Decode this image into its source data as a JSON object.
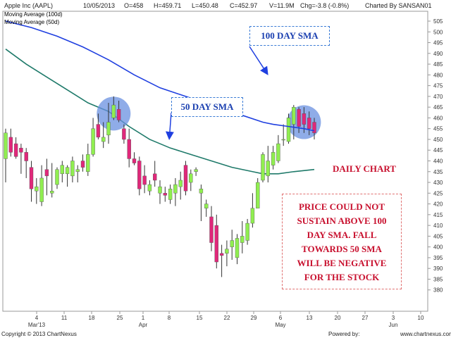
{
  "header": {
    "name": "Apple Inc (AAPL)",
    "date": "10/05/2013",
    "open": "O=458",
    "high": "H=459.71",
    "low": "L=450.48",
    "close": "C=452.97",
    "volume": "V=11.9M",
    "change": "Chg=-3.8 (-0.8%)",
    "charted_by": "Charted By SANSAN01"
  },
  "legend": [
    {
      "label": "Moving Average (100d)",
      "color": "#1f3fe0"
    },
    {
      "label": "Moving Average (50d)",
      "color": "#1f7a6a"
    }
  ],
  "footer": {
    "copyright": "Copyright © 2013 ChartNexus",
    "powered": "Powered by:",
    "url": "www.chartnexus.com"
  },
  "annotations": {
    "sma100_box": "100 DAY SMA",
    "sma50_box": "50 DAY SMA",
    "daily_chart": "DAILY CHART",
    "note_lines": [
      "PRICE COULD NOT",
      "SUSTAIN ABOVE 100",
      "DAY SMA. FALL",
      "TOWARDS 50 SMA",
      "WILL BE NEGATIVE",
      "FOR THE STOCK"
    ]
  },
  "colors": {
    "up_candle": "#90ee50",
    "down_candle": "#e0287a",
    "sma100": "#1f3fe0",
    "sma50": "#1f7a6a",
    "highlight": "#6a90e0",
    "note_text": "#c8102e"
  },
  "chart_data": {
    "type": "candlestick",
    "title": "Apple Inc (AAPL)",
    "ylim": [
      375,
      505
    ],
    "y_ticks": [
      380,
      385,
      390,
      395,
      400,
      405,
      410,
      415,
      420,
      425,
      430,
      435,
      440,
      445,
      450,
      455,
      460,
      465,
      470,
      475,
      480,
      485,
      490,
      495,
      500,
      505
    ],
    "x_tick_labels": [
      "4",
      "11",
      "18",
      "25",
      "1",
      "8",
      "15",
      "22",
      "29",
      "6",
      "13",
      "20",
      "27",
      "3",
      "10"
    ],
    "x_month_labels": [
      {
        "label": "Mar'13",
        "under": "4"
      },
      {
        "label": "Apr",
        "under": "1"
      },
      {
        "label": "May",
        "under": "6"
      },
      {
        "label": "Jun",
        "under": "3"
      }
    ],
    "candles": [
      {
        "o": 441,
        "h": 455,
        "l": 430,
        "c": 453
      },
      {
        "o": 451,
        "h": 455,
        "l": 442,
        "c": 444
      },
      {
        "o": 448,
        "h": 451,
        "l": 441,
        "c": 442
      },
      {
        "o": 446,
        "h": 448,
        "l": 434,
        "c": 444
      },
      {
        "o": 444,
        "h": 446,
        "l": 432,
        "c": 440
      },
      {
        "o": 437,
        "h": 440,
        "l": 421,
        "c": 427
      },
      {
        "o": 426,
        "h": 432,
        "l": 420,
        "c": 428
      },
      {
        "o": 421,
        "h": 438,
        "l": 419,
        "c": 432
      },
      {
        "o": 436,
        "h": 441,
        "l": 424,
        "c": 433
      },
      {
        "o": 425,
        "h": 439,
        "l": 423,
        "c": 426
      },
      {
        "o": 429,
        "h": 437,
        "l": 427,
        "c": 436
      },
      {
        "o": 434,
        "h": 440,
        "l": 430,
        "c": 438
      },
      {
        "o": 434,
        "h": 438,
        "l": 428,
        "c": 437
      },
      {
        "o": 433,
        "h": 442,
        "l": 430,
        "c": 440
      },
      {
        "o": 435,
        "h": 438,
        "l": 430,
        "c": 436
      },
      {
        "o": 440,
        "h": 443,
        "l": 435,
        "c": 437
      },
      {
        "o": 435,
        "h": 448,
        "l": 433,
        "c": 443
      },
      {
        "o": 443,
        "h": 460,
        "l": 442,
        "c": 455
      },
      {
        "o": 457,
        "h": 462,
        "l": 450,
        "c": 451
      },
      {
        "o": 449,
        "h": 458,
        "l": 446,
        "c": 451
      },
      {
        "o": 452,
        "h": 467,
        "l": 448,
        "c": 458
      },
      {
        "o": 460,
        "h": 470,
        "l": 459,
        "c": 466
      },
      {
        "o": 464,
        "h": 468,
        "l": 458,
        "c": 459
      },
      {
        "o": 455,
        "h": 457,
        "l": 448,
        "c": 450
      },
      {
        "o": 450,
        "h": 455,
        "l": 437,
        "c": 441
      },
      {
        "o": 441,
        "h": 444,
        "l": 438,
        "c": 439
      },
      {
        "o": 440,
        "h": 442,
        "l": 424,
        "c": 427
      },
      {
        "o": 433,
        "h": 438,
        "l": 425,
        "c": 429
      },
      {
        "o": 426,
        "h": 431,
        "l": 424,
        "c": 429
      },
      {
        "o": 434,
        "h": 440,
        "l": 428,
        "c": 431
      },
      {
        "o": 425,
        "h": 431,
        "l": 420,
        "c": 428
      },
      {
        "o": 425,
        "h": 428,
        "l": 421,
        "c": 424
      },
      {
        "o": 422,
        "h": 429,
        "l": 420,
        "c": 427
      },
      {
        "o": 425,
        "h": 432,
        "l": 419,
        "c": 429
      },
      {
        "o": 428,
        "h": 435,
        "l": 422,
        "c": 431
      },
      {
        "o": 438,
        "h": 440,
        "l": 424,
        "c": 426
      },
      {
        "o": 430,
        "h": 436,
        "l": 426,
        "c": 434
      },
      {
        "o": 435,
        "h": 437,
        "l": 433,
        "c": 436
      },
      {
        "o": 425,
        "h": 429,
        "l": 412,
        "c": 427
      },
      {
        "o": 418,
        "h": 422,
        "l": 414,
        "c": 420
      },
      {
        "o": 414,
        "h": 419,
        "l": 398,
        "c": 402
      },
      {
        "o": 410,
        "h": 415,
        "l": 390,
        "c": 393
      },
      {
        "o": 397,
        "h": 401,
        "l": 386,
        "c": 396
      },
      {
        "o": 397,
        "h": 403,
        "l": 391,
        "c": 399
      },
      {
        "o": 400,
        "h": 408,
        "l": 394,
        "c": 403
      },
      {
        "o": 395,
        "h": 406,
        "l": 392,
        "c": 404
      },
      {
        "o": 402,
        "h": 412,
        "l": 397,
        "c": 405
      },
      {
        "o": 403,
        "h": 413,
        "l": 401,
        "c": 411
      },
      {
        "o": 411,
        "h": 425,
        "l": 409,
        "c": 418
      },
      {
        "o": 418,
        "h": 432,
        "l": 418,
        "c": 430
      },
      {
        "o": 431,
        "h": 444,
        "l": 430,
        "c": 443
      },
      {
        "o": 433,
        "h": 447,
        "l": 430,
        "c": 440
      },
      {
        "o": 438,
        "h": 447,
        "l": 436,
        "c": 444
      },
      {
        "o": 440,
        "h": 452,
        "l": 439,
        "c": 448
      },
      {
        "o": 450,
        "h": 457,
        "l": 447,
        "c": 450
      },
      {
        "o": 449,
        "h": 462,
        "l": 448,
        "c": 460
      },
      {
        "o": 457,
        "h": 466,
        "l": 450,
        "c": 465
      },
      {
        "o": 464,
        "h": 465,
        "l": 453,
        "c": 456
      },
      {
        "o": 462,
        "h": 465,
        "l": 453,
        "c": 457
      },
      {
        "o": 460,
        "h": 463,
        "l": 452,
        "c": 455
      },
      {
        "o": 458,
        "h": 460,
        "l": 450,
        "c": 453
      }
    ],
    "sma100": [
      [
        0,
        505
      ],
      [
        5,
        502
      ],
      [
        10,
        498
      ],
      [
        15,
        493
      ],
      [
        20,
        487
      ],
      [
        25,
        480
      ],
      [
        30,
        474
      ],
      [
        35,
        470
      ],
      [
        40,
        466
      ],
      [
        45,
        462
      ],
      [
        50,
        458
      ],
      [
        52,
        457
      ],
      [
        55,
        456
      ],
      [
        58,
        455
      ],
      [
        60,
        454
      ]
    ],
    "sma50": [
      [
        0,
        492
      ],
      [
        4,
        485
      ],
      [
        8,
        479
      ],
      [
        12,
        473
      ],
      [
        16,
        467
      ],
      [
        20,
        463
      ],
      [
        24,
        456
      ],
      [
        28,
        450
      ],
      [
        32,
        446
      ],
      [
        36,
        443
      ],
      [
        40,
        440
      ],
      [
        44,
        437
      ],
      [
        48,
        435
      ],
      [
        50,
        434
      ],
      [
        53,
        434
      ],
      [
        56,
        435
      ],
      [
        60,
        436
      ]
    ],
    "highlights": [
      {
        "candle": 21,
        "price": 462
      },
      {
        "candle": 58,
        "price": 458
      }
    ],
    "arrows": [
      {
        "from_box": "sma100",
        "to_candle": 50,
        "to_price": 480
      },
      {
        "from_box": "sma50",
        "to_candle": 31,
        "to_price": 450
      }
    ]
  }
}
